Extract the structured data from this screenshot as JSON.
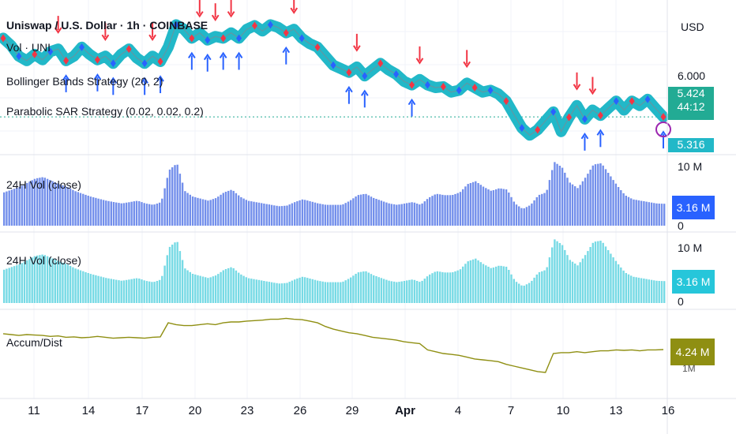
{
  "header": {
    "symbol_title": "Uniswap / U.S. Dollar · 1h · COINBASE",
    "currency": "USD"
  },
  "legends": {
    "vol": "Vol · UNI",
    "bollinger": "Bollinger Bands Strategy (20, 2)",
    "psar": "Parabolic SAR Strategy (0.02, 0.02, 0.2)",
    "vol24_a": "24H Vol (close)",
    "vol24_b": "24H Vol (close)",
    "accum": "Accum/Dist"
  },
  "colors": {
    "candle_teal": "#22b8c8",
    "up_arrow": "#2962ff",
    "down_arrow": "#f23645",
    "vol24_a": "#5b7be8",
    "vol24_b": "#5fd3e0",
    "accum_line": "#8f8f12",
    "last_price_tag": "#22ab94",
    "timer_tag": "#26a69a",
    "vol24_a_tag": "#2962ff",
    "vol24_b_tag": "#26c6da",
    "accum_tag": "#8f8f12"
  },
  "price_scale": {
    "level_label": "6.000",
    "last_price": "5.424",
    "countdown": "44:12",
    "bottom_tag": "5.316"
  },
  "vol_a_scale": {
    "top": "10 M",
    "bottom": "0",
    "last": "3.16 M"
  },
  "vol_b_scale": {
    "top": "10 M",
    "bottom": "0",
    "last": "3.16 M"
  },
  "accum_scale": {
    "last": "4.24 M",
    "hidden_label": "1M"
  },
  "x_axis": {
    "ticks": [
      "11",
      "14",
      "17",
      "20",
      "23",
      "26",
      "29",
      "Apr",
      "4",
      "7",
      "10",
      "13",
      "16"
    ]
  },
  "chart_data": [
    {
      "type": "line",
      "title": "Uniswap / U.S. Dollar · 1h · COINBASE",
      "series": [
        {
          "name": "Uniswap / U.S. Dollar",
          "values": [
            6.3,
            6.22,
            6.1,
            6.05,
            6.12,
            6.06,
            6.15,
            6.18,
            6.05,
            6.1,
            6.2,
            6.12,
            6.06,
            6.1,
            6.02,
            6.12,
            6.18,
            6.08,
            6.02,
            6.1,
            6.04,
            6.2,
            6.45,
            6.4,
            6.3,
            6.36,
            6.28,
            6.32,
            6.3,
            6.36,
            6.3,
            6.4,
            6.44,
            6.38,
            6.45,
            6.42,
            6.36,
            6.4,
            6.3,
            6.24,
            6.2,
            6.1,
            6.0,
            5.96,
            5.92,
            5.98,
            5.88,
            5.95,
            6.02,
            5.95,
            5.9,
            5.82,
            5.78,
            5.84,
            5.78,
            5.75,
            5.76,
            5.7,
            5.72,
            5.8,
            5.75,
            5.7,
            5.72,
            5.68,
            5.6,
            5.45,
            5.3,
            5.22,
            5.28,
            5.38,
            5.48,
            5.26,
            5.42,
            5.55,
            5.4,
            5.5,
            5.44,
            5.52,
            5.6,
            5.5,
            5.6,
            5.55,
            5.62,
            5.52,
            5.424
          ]
        }
      ],
      "y_tick_labels": [
        "6.000"
      ],
      "last_value": 5.424
    },
    {
      "type": "bar",
      "title": "24H Vol (close)",
      "ylim": [
        0,
        10000000
      ],
      "values_millions": [
        4.8,
        5.2,
        5.6,
        6.2,
        6.8,
        7.0,
        6.5,
        6.0,
        5.6,
        5.0,
        4.6,
        4.2,
        3.9,
        3.6,
        3.4,
        3.2,
        3.4,
        3.6,
        3.2,
        3.0,
        3.4,
        8.0,
        9.0,
        5.0,
        4.2,
        3.9,
        3.6,
        4.0,
        4.8,
        5.2,
        4.2,
        3.6,
        3.4,
        3.2,
        3.0,
        2.8,
        2.9,
        3.4,
        3.8,
        3.5,
        3.2,
        3.0,
        3.0,
        3.0,
        3.6,
        4.4,
        4.6,
        4.0,
        3.6,
        3.2,
        3.0,
        3.2,
        3.4,
        3.0,
        4.0,
        4.6,
        4.4,
        4.4,
        4.8,
        6.0,
        6.4,
        5.6,
        5.0,
        5.4,
        5.2,
        3.2,
        2.4,
        3.0,
        4.4,
        4.8,
        9.2,
        8.4,
        6.2,
        5.4,
        7.0,
        8.8,
        9.0,
        7.4,
        5.8,
        4.4,
        3.8,
        3.6,
        3.4,
        3.2,
        3.16
      ],
      "last_label": "3.16 M"
    },
    {
      "type": "bar",
      "title": "24H Vol (close)",
      "ylim": [
        0,
        10000000
      ],
      "values_millions": [
        4.8,
        5.2,
        5.6,
        6.2,
        6.8,
        7.0,
        6.5,
        6.0,
        5.6,
        5.0,
        4.6,
        4.2,
        3.9,
        3.6,
        3.4,
        3.2,
        3.4,
        3.6,
        3.2,
        3.0,
        3.4,
        8.0,
        9.0,
        5.0,
        4.2,
        3.9,
        3.6,
        4.0,
        4.8,
        5.2,
        4.2,
        3.6,
        3.4,
        3.2,
        3.0,
        2.8,
        2.9,
        3.4,
        3.8,
        3.5,
        3.2,
        3.0,
        3.0,
        3.0,
        3.6,
        4.4,
        4.6,
        4.0,
        3.6,
        3.2,
        3.0,
        3.2,
        3.4,
        3.0,
        4.0,
        4.6,
        4.4,
        4.4,
        4.8,
        6.0,
        6.4,
        5.6,
        5.0,
        5.4,
        5.2,
        3.2,
        2.4,
        3.0,
        4.4,
        4.8,
        9.2,
        8.4,
        6.2,
        5.4,
        7.0,
        8.8,
        9.0,
        7.4,
        5.8,
        4.4,
        3.8,
        3.6,
        3.4,
        3.2,
        3.16
      ],
      "last_label": "3.16 M"
    },
    {
      "type": "line",
      "title": "Accum/Dist",
      "values_millions": [
        6.0,
        5.9,
        5.8,
        5.9,
        5.85,
        5.8,
        5.7,
        5.75,
        5.6,
        5.65,
        5.55,
        5.6,
        5.7,
        5.6,
        5.5,
        5.55,
        5.6,
        5.55,
        5.5,
        5.6,
        5.65,
        7.2,
        7.0,
        6.9,
        6.9,
        7.0,
        7.1,
        7.0,
        7.2,
        7.3,
        7.3,
        7.4,
        7.45,
        7.5,
        7.6,
        7.6,
        7.7,
        7.6,
        7.55,
        7.4,
        7.2,
        6.8,
        6.5,
        6.3,
        6.1,
        6.0,
        5.8,
        5.6,
        5.5,
        5.4,
        5.3,
        5.1,
        5.0,
        4.9,
        4.2,
        4.0,
        3.8,
        3.7,
        3.6,
        3.4,
        3.2,
        3.1,
        3.0,
        2.9,
        2.6,
        2.4,
        2.2,
        2.0,
        1.8,
        1.7,
        3.8,
        3.9,
        3.9,
        4.0,
        3.9,
        4.0,
        4.1,
        4.1,
        4.2,
        4.15,
        4.2,
        4.1,
        4.2,
        4.2,
        4.24
      ],
      "last_label": "4.24 M"
    }
  ]
}
